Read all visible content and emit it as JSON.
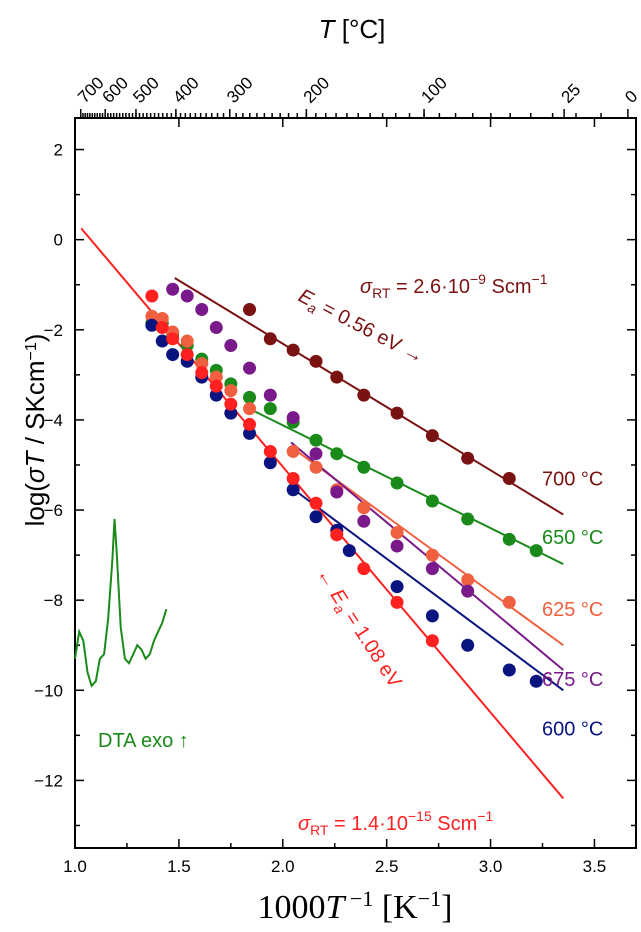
{
  "chart_data": {
    "type": "scatter",
    "xlabel": "1000T⁻¹ [K⁻¹]",
    "ylabel": "log(σT / SKcm⁻¹)",
    "top_xlabel": "T [°C]",
    "xlim": [
      1.0,
      3.7
    ],
    "ylim": [
      -13.5,
      2.7
    ],
    "x_ticks": [
      "1.0",
      "1.5",
      "2.0",
      "2.5",
      "3.0",
      "3.5"
    ],
    "y_ticks": [
      "2",
      "0",
      "-2",
      "-4",
      "-6",
      "-8",
      "-10",
      "-12"
    ],
    "top_ticks": [
      "700",
      "600",
      "500",
      "400",
      "300",
      "200",
      "100",
      "25",
      "0"
    ],
    "grid": false,
    "series": [
      {
        "name": "700 °C",
        "color": "#7a1212",
        "points": [
          [
            1.84,
            -1.55
          ],
          [
            1.94,
            -2.2
          ],
          [
            2.05,
            -2.45
          ],
          [
            2.16,
            -2.7
          ],
          [
            2.26,
            -3.05
          ],
          [
            2.39,
            -3.45
          ],
          [
            2.55,
            -3.85
          ],
          [
            2.72,
            -4.35
          ],
          [
            2.89,
            -4.85
          ],
          [
            3.09,
            -5.3
          ]
        ],
        "fit": [
          [
            1.48,
            -0.85
          ],
          [
            3.35,
            -6.1
          ]
        ]
      },
      {
        "name": "650 °C",
        "color": "#1a8a1a",
        "points": [
          [
            1.37,
            -1.85
          ],
          [
            1.42,
            -1.85
          ],
          [
            1.47,
            -2.1
          ],
          [
            1.54,
            -2.35
          ],
          [
            1.61,
            -2.65
          ],
          [
            1.68,
            -2.9
          ],
          [
            1.75,
            -3.2
          ],
          [
            1.84,
            -3.5
          ],
          [
            1.94,
            -3.75
          ],
          [
            2.05,
            -4.05
          ],
          [
            2.16,
            -4.45
          ],
          [
            2.26,
            -4.75
          ],
          [
            2.39,
            -5.05
          ],
          [
            2.55,
            -5.4
          ],
          [
            2.72,
            -5.8
          ],
          [
            2.89,
            -6.2
          ],
          [
            3.09,
            -6.65
          ],
          [
            3.22,
            -6.9
          ]
        ],
        "fit": [
          [
            1.86,
            -3.8
          ],
          [
            3.35,
            -7.2
          ]
        ]
      },
      {
        "name": "625 °C",
        "color": "#f06040",
        "points": [
          [
            1.37,
            -1.7
          ],
          [
            1.42,
            -1.75
          ],
          [
            1.47,
            -2.05
          ],
          [
            1.54,
            -2.25
          ],
          [
            1.61,
            -2.75
          ],
          [
            1.68,
            -3.05
          ],
          [
            1.75,
            -3.35
          ],
          [
            1.84,
            -3.75
          ],
          [
            2.05,
            -4.7
          ],
          [
            2.16,
            -5.05
          ],
          [
            2.26,
            -5.55
          ],
          [
            2.39,
            -5.95
          ],
          [
            2.55,
            -6.5
          ],
          [
            2.72,
            -7.0
          ],
          [
            2.89,
            -7.55
          ],
          [
            3.09,
            -8.05
          ]
        ],
        "fit": [
          [
            2.04,
            -4.6
          ],
          [
            3.35,
            -9.0
          ]
        ]
      },
      {
        "name": "675 °C",
        "color": "#7a1a8a",
        "points": [
          [
            1.47,
            -1.1
          ],
          [
            1.54,
            -1.25
          ],
          [
            1.61,
            -1.55
          ],
          [
            1.68,
            -1.95
          ],
          [
            1.75,
            -2.35
          ],
          [
            1.84,
            -2.85
          ],
          [
            1.94,
            -3.45
          ],
          [
            2.05,
            -3.95
          ],
          [
            2.16,
            -4.75
          ],
          [
            2.26,
            -5.6
          ],
          [
            2.39,
            -6.25
          ],
          [
            2.55,
            -6.8
          ],
          [
            2.72,
            -7.3
          ],
          [
            2.89,
            -7.8
          ]
        ],
        "fit": [
          [
            2.04,
            -4.5
          ],
          [
            3.35,
            -9.55
          ]
        ]
      },
      {
        "name": "600 °C",
        "color": "#0a1480",
        "points": [
          [
            1.37,
            -1.9
          ],
          [
            1.42,
            -2.25
          ],
          [
            1.47,
            -2.55
          ],
          [
            1.54,
            -2.7
          ],
          [
            1.61,
            -3.05
          ],
          [
            1.68,
            -3.45
          ],
          [
            1.75,
            -3.85
          ],
          [
            1.84,
            -4.3
          ],
          [
            1.94,
            -4.95
          ],
          [
            2.05,
            -5.55
          ],
          [
            2.16,
            -6.15
          ],
          [
            2.26,
            -6.45
          ],
          [
            2.32,
            -6.9
          ],
          [
            2.55,
            -7.7
          ],
          [
            2.72,
            -8.35
          ],
          [
            2.89,
            -9.0
          ],
          [
            3.09,
            -9.55
          ],
          [
            3.22,
            -9.8
          ]
        ],
        "fit": [
          [
            2.04,
            -5.5
          ],
          [
            3.35,
            -10.0
          ]
        ]
      },
      {
        "name": "",
        "color": "#ff2020",
        "points": [
          [
            1.37,
            -1.25
          ],
          [
            1.42,
            -1.95
          ],
          [
            1.47,
            -2.2
          ],
          [
            1.54,
            -2.55
          ],
          [
            1.61,
            -2.95
          ],
          [
            1.68,
            -3.25
          ],
          [
            1.75,
            -3.65
          ],
          [
            1.84,
            -4.1
          ],
          [
            1.94,
            -4.7
          ],
          [
            2.05,
            -5.3
          ],
          [
            2.16,
            -5.85
          ],
          [
            2.26,
            -6.55
          ],
          [
            2.39,
            -7.3
          ],
          [
            2.55,
            -8.05
          ],
          [
            2.72,
            -8.9
          ]
        ],
        "fit": [
          [
            1.03,
            0.25
          ],
          [
            3.35,
            -12.4
          ]
        ]
      }
    ],
    "dta": {
      "label": "DTA exo ↑",
      "color": "#1a8a1a",
      "points": [
        [
          1.0,
          -9.3
        ],
        [
          1.02,
          -8.7
        ],
        [
          1.04,
          -8.9
        ],
        [
          1.06,
          -9.6
        ],
        [
          1.08,
          -9.9
        ],
        [
          1.1,
          -9.8
        ],
        [
          1.12,
          -9.3
        ],
        [
          1.14,
          -9.2
        ],
        [
          1.16,
          -8.4
        ],
        [
          1.18,
          -7.1
        ],
        [
          1.19,
          -6.2
        ],
        [
          1.2,
          -6.9
        ],
        [
          1.22,
          -8.6
        ],
        [
          1.24,
          -9.3
        ],
        [
          1.26,
          -9.4
        ],
        [
          1.28,
          -9.2
        ],
        [
          1.3,
          -9.0
        ],
        [
          1.32,
          -9.1
        ],
        [
          1.34,
          -9.3
        ],
        [
          1.36,
          -9.2
        ],
        [
          1.38,
          -8.9
        ],
        [
          1.4,
          -8.7
        ],
        [
          1.42,
          -8.5
        ],
        [
          1.44,
          -8.2
        ]
      ]
    },
    "annotations": {
      "sigma_rt_top": "σRT = 2.6·10⁻⁹ Scm⁻¹",
      "ea_top": "Ea = 0.56 eV →",
      "ea_bottom": "← Ea = 1.08 eV",
      "sigma_rt_bottom": "σRT = 1.4·10⁻¹⁵ Scm⁻¹"
    }
  }
}
